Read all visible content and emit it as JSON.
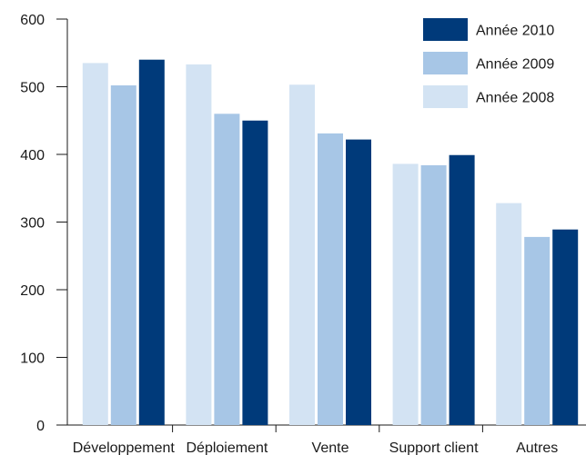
{
  "chart_data": {
    "type": "bar",
    "title": "",
    "xlabel": "",
    "ylabel": "",
    "ylim": [
      0,
      600
    ],
    "yticks": [
      0,
      100,
      200,
      300,
      400,
      500,
      600
    ],
    "grid": false,
    "legend_position": "top-right",
    "categories": [
      "Développement",
      "Déploiement",
      "Vente",
      "Support client",
      "Autres"
    ],
    "series": [
      {
        "name": "Année 2008",
        "color": "#d3e3f3",
        "values": [
          535,
          533,
          503,
          386,
          328
        ]
      },
      {
        "name": "Année 2009",
        "color": "#a7c6e6",
        "values": [
          502,
          460,
          431,
          384,
          278
        ]
      },
      {
        "name": "Année 2010",
        "color": "#003a7a",
        "values": [
          540,
          450,
          422,
          399,
          289
        ]
      }
    ],
    "legend_order": [
      "Année 2010",
      "Année 2009",
      "Année 2008"
    ]
  }
}
